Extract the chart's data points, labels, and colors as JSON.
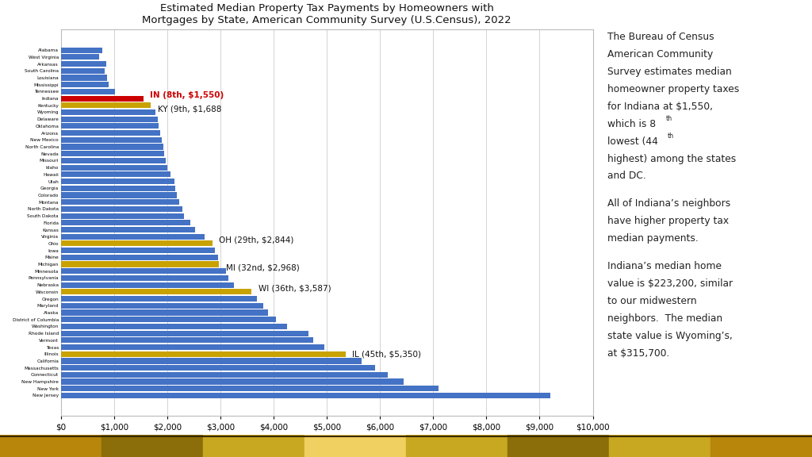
{
  "title": "Estimated Median Property Tax Payments by Homeowners with\nMortgages by State, American Community Survey (U.S.Census), 2022",
  "states": [
    "Alabama",
    "West Virginia",
    "Arkansas",
    "South Carolina",
    "Louisiana",
    "Mississippi",
    "Tennessee",
    "Indiana",
    "Kentucky",
    "Wyoming",
    "Delaware",
    "Oklahoma",
    "Arizona",
    "New Mexico",
    "North Carolina",
    "Nevada",
    "Missouri",
    "Idaho",
    "Hawaii",
    "Utah",
    "Georgia",
    "Colorado",
    "Montana",
    "North Dakota",
    "South Dakota",
    "Florida",
    "Kansas",
    "Virginia",
    "Ohio",
    "Iowa",
    "Maine",
    "Michigan",
    "Minnesota",
    "Pennsylvania",
    "Nebraska",
    "Wisconsin",
    "Oregon",
    "Maryland",
    "Alaska",
    "District of Columbia",
    "Washington",
    "Rhode Island",
    "Vermont",
    "Texas",
    "Illinois",
    "California",
    "Massachusetts",
    "Connecticut",
    "New Hampshire",
    "New York",
    "New Jersey"
  ],
  "values": [
    780,
    720,
    850,
    820,
    870,
    900,
    1010,
    1550,
    1688,
    1780,
    1820,
    1840,
    1860,
    1900,
    1920,
    1940,
    1970,
    2000,
    2060,
    2130,
    2150,
    2180,
    2220,
    2280,
    2310,
    2430,
    2530,
    2700,
    2844,
    2900,
    2950,
    2968,
    3100,
    3150,
    3250,
    3587,
    3680,
    3800,
    3900,
    4050,
    4250,
    4650,
    4750,
    4950,
    5350,
    5650,
    5900,
    6150,
    6450,
    7100,
    9200
  ],
  "highlighted": {
    "Indiana": {
      "color": "#cc0000",
      "label": "IN (8th, $1,550)"
    },
    "Kentucky": {
      "color": "#c8a200",
      "label": "KY (9th, $1,688"
    },
    "Ohio": {
      "color": "#c8a200",
      "label": "OH (29th, $2,844)"
    },
    "Michigan": {
      "color": "#c8a200",
      "label": "MI (32nd, $2,968)"
    },
    "Wisconsin": {
      "color": "#c8a200",
      "label": "WI (36th, $3,587)"
    },
    "Illinois": {
      "color": "#c8a200",
      "label": "IL (45th, $5,350)"
    }
  },
  "default_color": "#4472c4",
  "xlim": [
    0,
    10000
  ],
  "xticks": [
    0,
    1000,
    2000,
    3000,
    4000,
    5000,
    6000,
    7000,
    8000,
    9000,
    10000
  ],
  "background_color": "#ffffff",
  "chart_border_color": "#bbbbbb",
  "sidebar_lines": [
    "The Bureau of Census",
    "American Community",
    "Survey estimates median",
    "homeowner property taxes",
    "for Indiana at $1,550,",
    "which is 8",
    "lowest (44",
    "highest) among the states",
    "and DC.",
    "",
    "All of Indiana’s neighbors",
    "have higher property tax",
    "median payments.",
    "",
    "Indiana’s median home",
    "value is $223,200, similar",
    "to our midwestern",
    "neighbors.  The median",
    "state value is Wyoming’s,",
    "at $315,700."
  ],
  "bottom_bar_colors": [
    "#b8860b",
    "#8b6914",
    "#c8a200"
  ],
  "gold_gradient": [
    "#c8a200",
    "#8b6914",
    "#c8a200",
    "#f0c040",
    "#8b6914"
  ]
}
